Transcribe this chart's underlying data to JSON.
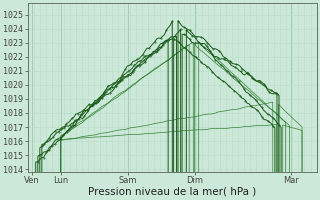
{
  "bg_color": "#cce8d8",
  "grid_color_major": "#9ec8b0",
  "grid_color_minor": "#b8ddc8",
  "line_color_dark": "#1a5c1a",
  "line_color_mid": "#2a7a2a",
  "ylabel_ticks": [
    1014,
    1015,
    1016,
    1017,
    1018,
    1019,
    1020,
    1021,
    1022,
    1023,
    1024,
    1025
  ],
  "ylim": [
    1013.8,
    1025.8
  ],
  "xlabel": "Pression niveau de la mer( hPa )",
  "xtick_labels": [
    "Ven",
    "Lun",
    "Sam",
    "Dim",
    "Mar"
  ],
  "xtick_positions": [
    0.0,
    0.7,
    2.3,
    3.9,
    6.2
  ],
  "xlim": [
    -0.1,
    6.8
  ],
  "tick_fontsize": 6,
  "xlabel_fontsize": 7.5,
  "num_minor_vgrid": 48
}
